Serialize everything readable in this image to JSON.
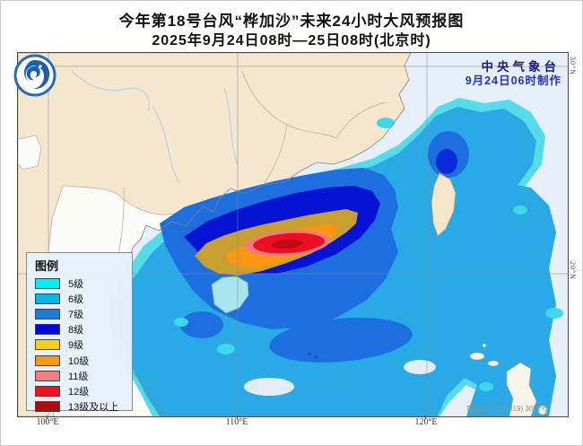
{
  "title": {
    "line1": "今年第18号台风“桦加沙”未来24小时大风预报图",
    "line2": "2025年9月24日08时—25日08时(北京时)"
  },
  "map": {
    "agency_name": "中央气象台",
    "issue_time": "9月24日06时制作",
    "approval_note": "审图号 GS (2019) 3082号",
    "legend": {
      "title": "图例",
      "items": [
        {
          "label": "5级",
          "color": "#00EFEF"
        },
        {
          "label": "6级",
          "color": "#00B8E8"
        },
        {
          "label": "7级",
          "color": "#1E7BD8"
        },
        {
          "label": "8级",
          "color": "#0008E0"
        },
        {
          "label": "9级",
          "color": "#F7CE18"
        },
        {
          "label": "10级",
          "color": "#FA9A14"
        },
        {
          "label": "11级",
          "color": "#F27D80"
        },
        {
          "label": "12级",
          "color": "#F2101C"
        },
        {
          "label": "13级及以上",
          "color": "#AC0C10"
        }
      ]
    },
    "axis": {
      "x_labels": [
        "100°E",
        "110°E",
        "120°E"
      ],
      "y_labels": [
        "30°N",
        "20°N"
      ]
    }
  }
}
